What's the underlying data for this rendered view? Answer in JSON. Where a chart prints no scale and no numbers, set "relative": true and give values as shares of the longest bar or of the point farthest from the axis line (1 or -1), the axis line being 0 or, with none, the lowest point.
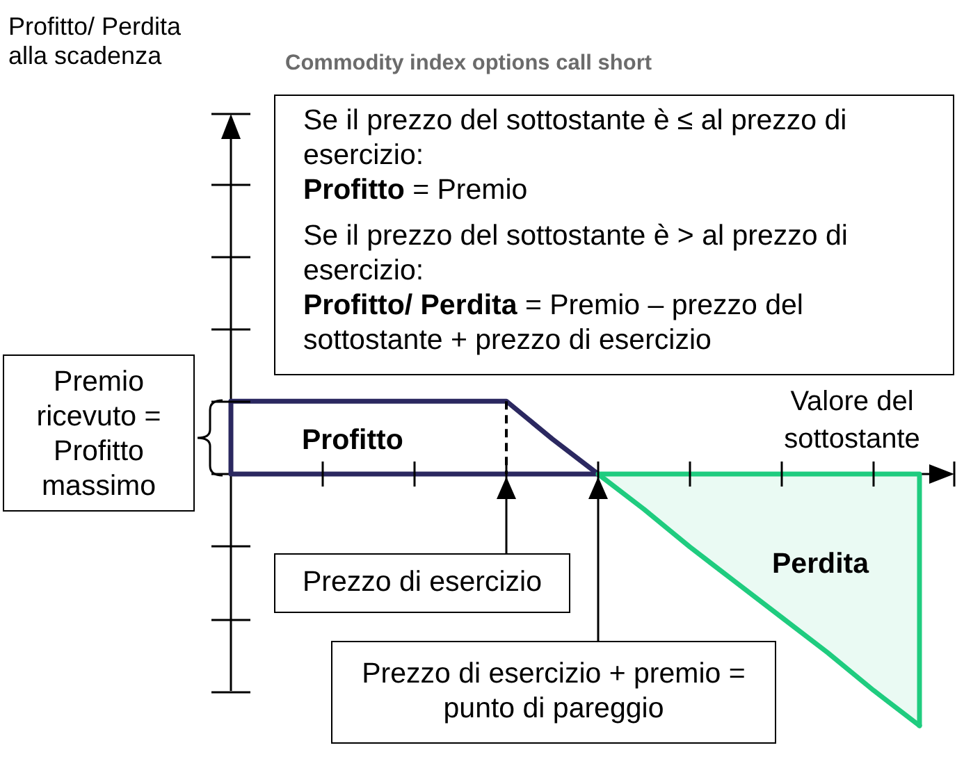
{
  "chart_data": {
    "type": "line",
    "title": "Commodity index options call short",
    "xlabel": "Valore del sottostante",
    "relative": true,
    "legend": false,
    "marker": "none",
    "categories": [
      null,
      null,
      null,
      null,
      null,
      null,
      null,
      null,
      null,
      null,
      null,
      null,
      null,
      null,
      null,
      null
    ],
    "series": [
      {
        "type": "line",
        "color": "#2b2860",
        "values": [
          0.29,
          0.29,
          0.29,
          0.29,
          0.29,
          0.29,
          0.29,
          0.14,
          0,
          null,
          null,
          null,
          null,
          null,
          null,
          null
        ]
      },
      {
        "type": "area",
        "color": "#1fcc7f",
        "values": [
          null,
          null,
          null,
          null,
          null,
          null,
          null,
          null,
          0,
          -0.14,
          -0.29,
          -0.43,
          -0.57,
          -0.71,
          -0.86,
          -1
        ]
      }
    ],
    "annotations": [
      "Se il prezzo del sottostante è ≤ al prezzo di esercizio:",
      "Profitto = Premio",
      "Se il prezzo del sottostante è > al prezzo di esercizio:",
      "Profitto/ Perdita = Premio – prezzo del sottostante + prezzo di esercizio",
      "Premio ricevuto = Profitto massimo",
      "Profitto",
      "Perdita",
      "Prezzo di esercizio",
      "Prezzo di esercizio + premio = punto di pareggio",
      "Profitto/ Perdita alla scadenza"
    ]
  }
}
